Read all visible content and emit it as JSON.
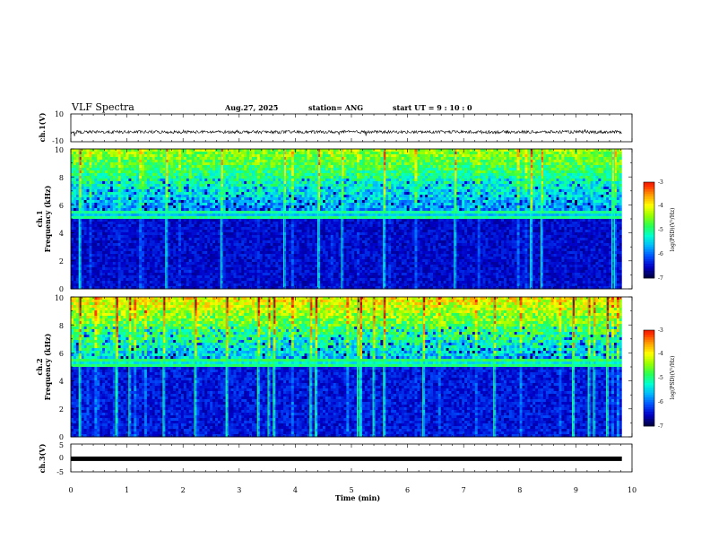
{
  "header": {
    "title": "VLF Spectra",
    "date": "Aug.27, 2025",
    "station": "station= ANG",
    "start": "start  UT =   9 : 10 : 0"
  },
  "chart_data": {
    "type": "heatmap",
    "x": {
      "label": "Time  (min)",
      "range": [
        0,
        10
      ],
      "ticks": [
        "0",
        "1",
        "2",
        "3",
        "4",
        "5",
        "6",
        "7",
        "8",
        "9",
        "10"
      ],
      "data_end": 9.82
    },
    "panels": [
      {
        "id": "ch1-waveform",
        "type": "line",
        "ylabel": "ch.1(V)",
        "yrange": [
          -10,
          10
        ],
        "yticks": [
          "10",
          "-10"
        ],
        "level": -3,
        "noise": 1.1
      },
      {
        "id": "ch1-spectrogram",
        "type": "heatmap",
        "ylabel_channel": "ch.1",
        "ylabel": "Frequency  (kHz)",
        "yrange": [
          0,
          10
        ],
        "yticks": [
          "0",
          "2",
          "4",
          "6",
          "8",
          "10"
        ],
        "intensity_scale": 0.85,
        "colorbar": {
          "label": "log(PSD)(V²/Hz)",
          "range": [
            -7,
            -3
          ],
          "ticks": [
            "-3",
            "-4",
            "-5",
            "-6",
            "-7"
          ]
        }
      },
      {
        "id": "ch2-spectrogram",
        "type": "heatmap",
        "ylabel_channel": "ch.2",
        "ylabel": "Frequency  (kHz)",
        "yrange": [
          0,
          10
        ],
        "yticks": [
          "0",
          "2",
          "4",
          "6",
          "8",
          "10"
        ],
        "intensity_scale": 1.0,
        "colorbar": {
          "label": "log(PSD)(V²/Hz)",
          "range": [
            -7,
            -3
          ],
          "ticks": [
            "-3",
            "-4",
            "-5",
            "-6",
            "-7"
          ]
        }
      },
      {
        "id": "ch3-waveform",
        "type": "line",
        "ylabel": "ch.3(V)",
        "yrange": [
          -5,
          5
        ],
        "yticks": [
          "5",
          "0",
          "-5"
        ],
        "level": -0.3,
        "noise": 0
      }
    ]
  },
  "colors": {
    "colormap": [
      "#00004a",
      "#0000c8",
      "#0050ff",
      "#00b4ff",
      "#00ffd2",
      "#28ff50",
      "#96ff00",
      "#ffff00",
      "#ffa000",
      "#ff2800",
      "#b40000",
      "#ffffff"
    ],
    "axis": "#000000"
  }
}
